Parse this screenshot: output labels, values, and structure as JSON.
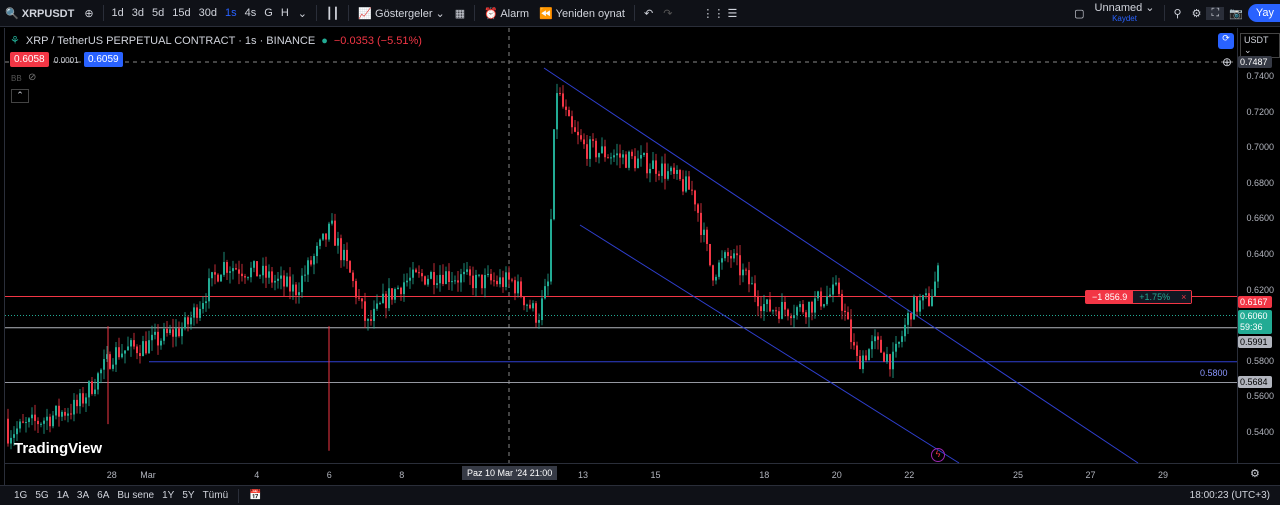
{
  "toolbar": {
    "symbol": "XRPUSDT",
    "intervals": [
      "1d",
      "3d",
      "5d",
      "15d",
      "30d",
      "1s",
      "4s",
      "G",
      "H"
    ],
    "active_interval": "1s",
    "indicators": "Göstergeler",
    "alarm": "Alarm",
    "replay": "Yeniden oynat",
    "layout_name": "Unnamed",
    "layout_save": "Kaydet",
    "publish": "Yay"
  },
  "legend": {
    "title": "XRP / TetherUS PERPETUAL CONTRACT · 1s · BINANCE",
    "change": "−0.0353 (−5.51%)",
    "bid": "0.6058",
    "spread": "0.0001",
    "ask": "0.6059",
    "indicator": "BB"
  },
  "currency": "USDT",
  "price_axis": {
    "labels": [
      "0.7400",
      "0.7200",
      "0.7000",
      "0.6800",
      "0.6600",
      "0.6400",
      "0.6200",
      "0.5800",
      "0.5600",
      "0.5400"
    ],
    "crosshair_price": "0.7487",
    "last_price": "0.6060",
    "countdown": "59:36",
    "line_red": "0.6167",
    "line_white": "0.5991",
    "line_blue": "0.5800",
    "line_gray": "0.5684"
  },
  "position": {
    "pnl": "−1 856.9",
    "pct": "+1.75%",
    "close": "×"
  },
  "time_axis": {
    "labels": [
      "28",
      "Mar",
      "4",
      "6",
      "8",
      "13",
      "15",
      "18",
      "20",
      "22",
      "25",
      "27",
      "29"
    ],
    "crosshair_time": "Paz 10 Mar '24  21:00"
  },
  "bottom": {
    "ranges": [
      "1G",
      "5G",
      "1A",
      "3A",
      "6A",
      "Bu sene",
      "1Y",
      "5Y",
      "Tümü"
    ],
    "clock": "18:00:23 (UTC+3)"
  },
  "logo": "TradingView",
  "colors": {
    "up": "#22ab94",
    "down": "#f23645",
    "accent": "#2962ff",
    "trendline": "#2f3fcf"
  },
  "chart_data": {
    "type": "candlestick",
    "ylim": [
      0.53,
      0.75
    ],
    "price_path": [
      [
        26.1,
        0.548
      ],
      [
        27,
        0.555
      ],
      [
        28,
        0.585
      ],
      [
        29,
        0.59
      ],
      [
        30,
        0.6
      ],
      [
        31,
        0.635
      ],
      [
        32,
        0.63
      ],
      [
        33,
        0.62
      ],
      [
        34,
        0.655
      ],
      [
        34.5,
        0.63
      ],
      [
        35,
        0.6
      ],
      [
        35.5,
        0.615
      ],
      [
        36,
        0.625
      ],
      [
        37,
        0.63
      ],
      [
        38,
        0.625
      ],
      [
        39,
        0.625
      ],
      [
        39.7,
        0.605
      ],
      [
        40,
        0.625
      ],
      [
        40.2,
        0.735
      ],
      [
        40.6,
        0.71
      ],
      [
        41,
        0.7
      ],
      [
        42,
        0.695
      ],
      [
        43,
        0.69
      ],
      [
        44,
        0.675
      ],
      [
        44.5,
        0.63
      ],
      [
        45,
        0.64
      ],
      [
        46,
        0.61
      ],
      [
        47,
        0.61
      ],
      [
        48,
        0.62
      ],
      [
        48.5,
        0.58
      ],
      [
        49,
        0.59
      ],
      [
        49.5,
        0.58
      ],
      [
        50,
        0.61
      ],
      [
        50.5,
        0.615
      ],
      [
        51,
        0.645
      ],
      [
        51.8,
        0.606
      ]
    ]
  }
}
